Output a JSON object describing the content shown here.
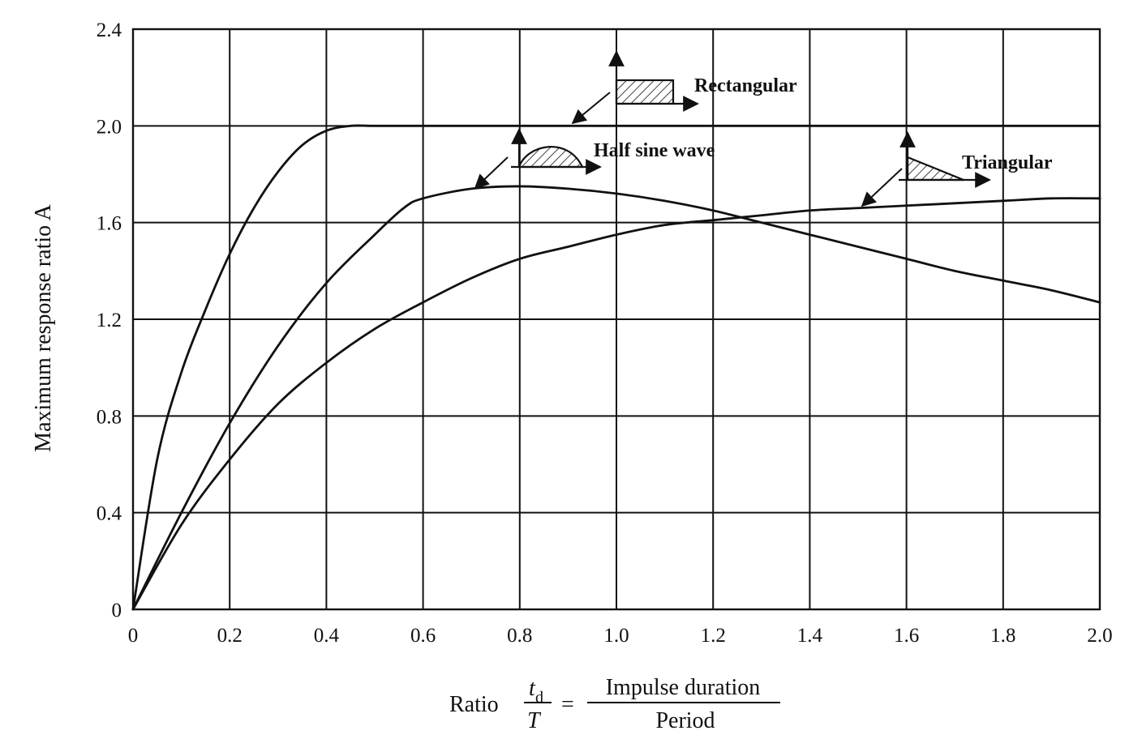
{
  "chart_data": {
    "type": "line",
    "title": "",
    "xlabel": {
      "prefix": "Ratio",
      "fraction_numerator": "t",
      "fraction_numerator_subscript": "d",
      "fraction_denominator": "T",
      "equals": "=",
      "word_numerator": "Impulse duration",
      "word_denominator": "Period"
    },
    "ylabel": "Maximum response ratio  A",
    "xlim": [
      0,
      2.0
    ],
    "ylim": [
      0,
      2.4
    ],
    "xticks": [
      0,
      0.2,
      0.4,
      0.6,
      0.8,
      1.0,
      1.2,
      1.4,
      1.6,
      1.8,
      2.0
    ],
    "xtick_labels": [
      "0",
      "0.2",
      "0.4",
      "0.6",
      "0.8",
      "1.0",
      "1.2",
      "1.4",
      "1.6",
      "1.8",
      "2.0"
    ],
    "yticks": [
      0,
      0.4,
      0.8,
      1.2,
      1.6,
      2.0,
      2.4
    ],
    "ytick_labels": [
      "0",
      "0.4",
      "0.8",
      "1.2",
      "1.6",
      "2.0",
      "2.4"
    ],
    "grid": true,
    "series": [
      {
        "name": "Rectangular",
        "x": [
          0,
          0.05,
          0.1,
          0.15,
          0.2,
          0.25,
          0.3,
          0.35,
          0.4,
          0.45,
          0.5,
          0.6,
          0.8,
          1.0,
          1.2,
          1.4,
          1.6,
          1.8,
          2.0
        ],
        "y": [
          0,
          0.62,
          0.98,
          1.24,
          1.47,
          1.66,
          1.81,
          1.92,
          1.98,
          2.0,
          2.0,
          2.0,
          2.0,
          2.0,
          2.0,
          2.0,
          2.0,
          2.0,
          2.0
        ]
      },
      {
        "name": "Half sine wave",
        "x": [
          0,
          0.1,
          0.2,
          0.3,
          0.4,
          0.5,
          0.56,
          0.6,
          0.7,
          0.8,
          0.9,
          1.0,
          1.1,
          1.2,
          1.3,
          1.4,
          1.5,
          1.6,
          1.7,
          1.8,
          1.9,
          2.0
        ],
        "y": [
          0,
          0.4,
          0.77,
          1.09,
          1.35,
          1.55,
          1.66,
          1.7,
          1.74,
          1.75,
          1.74,
          1.72,
          1.69,
          1.65,
          1.6,
          1.55,
          1.5,
          1.45,
          1.4,
          1.36,
          1.32,
          1.27
        ]
      },
      {
        "name": "Triangular",
        "x": [
          0,
          0.1,
          0.2,
          0.3,
          0.4,
          0.5,
          0.6,
          0.7,
          0.8,
          0.9,
          1.0,
          1.1,
          1.2,
          1.3,
          1.4,
          1.5,
          1.6,
          1.7,
          1.8,
          1.9,
          2.0
        ],
        "y": [
          0,
          0.35,
          0.62,
          0.85,
          1.02,
          1.16,
          1.27,
          1.37,
          1.45,
          1.5,
          1.55,
          1.59,
          1.61,
          1.63,
          1.65,
          1.66,
          1.67,
          1.68,
          1.69,
          1.7,
          1.7
        ]
      }
    ],
    "annotations": [
      {
        "text": "Rectangular",
        "series": "Rectangular",
        "pulse_shape": "rectangle"
      },
      {
        "text": "Half sine wave",
        "series": "Half sine wave",
        "pulse_shape": "half-sine"
      },
      {
        "text": "Triangular",
        "series": "Triangular",
        "pulse_shape": "triangle"
      }
    ],
    "colors": {
      "line": "#111111",
      "grid": "#111111",
      "background": "#ffffff"
    }
  }
}
